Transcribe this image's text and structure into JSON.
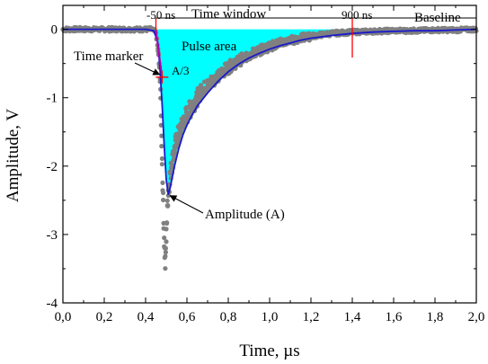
{
  "chart_data": {
    "type": "scatter",
    "xlabel": "Time, µs",
    "ylabel": "Amplitude, V",
    "xlim": [
      0.0,
      2.0
    ],
    "ylim": [
      -4.0,
      0.35
    ],
    "x_ticks": [
      "0,0",
      "0,2",
      "0,4",
      "0,6",
      "0,8",
      "1,0",
      "1,2",
      "1,4",
      "1,6",
      "1,8",
      "2,0"
    ],
    "y_ticks": [
      "0",
      "-1",
      "-2",
      "-3",
      "-4"
    ],
    "grid": false,
    "colors": {
      "raw_points": "#808080",
      "fit_line": "#1a1acc",
      "pulse_area_fill": "#00ffff",
      "markers": "#ff0000",
      "time_marker_trace": "#b000b0"
    },
    "series": [
      {
        "kind": "raw-samples",
        "x": [
          0.4,
          0.43,
          0.45,
          0.46,
          0.47,
          0.475,
          0.48,
          0.485,
          0.49,
          0.495,
          0.5,
          0.505,
          0.51,
          0.52,
          0.53,
          0.55,
          0.57,
          0.6,
          0.63,
          0.66,
          0.7,
          0.75,
          0.8,
          0.85,
          0.9,
          0.95,
          1.0,
          1.05,
          1.1,
          1.15,
          1.2,
          1.25,
          1.3,
          1.35,
          1.4,
          1.5,
          1.6,
          1.7,
          1.8,
          1.9,
          2.0
        ],
        "y": [
          0.0,
          0.0,
          -0.05,
          -0.3,
          -0.7,
          -1.3,
          -1.9,
          -2.5,
          -3.1,
          -3.45,
          -3.0,
          -2.6,
          -2.35,
          -2.1,
          -1.9,
          -1.65,
          -1.45,
          -1.25,
          -1.1,
          -0.95,
          -0.82,
          -0.68,
          -0.56,
          -0.46,
          -0.38,
          -0.31,
          -0.25,
          -0.2,
          -0.16,
          -0.13,
          -0.1,
          -0.08,
          -0.06,
          -0.05,
          -0.04,
          -0.03,
          -0.02,
          -0.02,
          -0.01,
          -0.01,
          0.0
        ]
      },
      {
        "kind": "smoothed",
        "x": [
          0.0,
          0.4,
          0.44,
          0.46,
          0.47,
          0.48,
          0.49,
          0.5,
          0.51,
          0.52,
          0.54,
          0.56,
          0.58,
          0.6,
          0.62,
          0.65,
          0.7,
          0.75,
          0.8,
          0.85,
          0.9,
          0.95,
          1.0,
          1.05,
          1.1,
          1.15,
          1.2,
          1.3,
          1.4,
          1.5,
          1.6,
          1.7,
          1.8,
          1.9,
          2.0
        ],
        "y": [
          0.0,
          0.0,
          -0.02,
          -0.2,
          -0.6,
          -1.1,
          -1.7,
          -2.2,
          -2.42,
          -2.3,
          -2.0,
          -1.75,
          -1.55,
          -1.4,
          -1.28,
          -1.12,
          -0.93,
          -0.76,
          -0.62,
          -0.51,
          -0.42,
          -0.35,
          -0.29,
          -0.24,
          -0.2,
          -0.16,
          -0.13,
          -0.09,
          -0.06,
          -0.04,
          -0.03,
          -0.02,
          -0.02,
          -0.01,
          0.0
        ]
      }
    ],
    "annotations": {
      "start": "-50 ns",
      "window": "Time window",
      "end": "900 ns",
      "baseline": "Baseline",
      "pulse_area": "Pulse area",
      "time_marker": "Time marker",
      "third": "A/3",
      "amplitude": "Amplitude (A)"
    },
    "markers": {
      "window_start_x": 0.45,
      "window_end_x": 1.4,
      "time_marker_x": 0.48,
      "time_marker_y": -0.7,
      "amplitude_x": 0.51,
      "amplitude_y": -2.42
    }
  }
}
